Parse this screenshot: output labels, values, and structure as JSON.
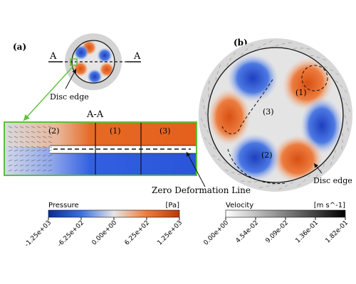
{
  "panel_a": {
    "label": "(a)",
    "section_marker": "A",
    "section_title": "A-A",
    "disc_edge_label": "Disc edge",
    "zero_line_label": "Zero Deformation Line",
    "regions": [
      "(2)",
      "(1)",
      "(3)"
    ]
  },
  "panel_b": {
    "label": "(b)",
    "disc_edge_label": "Disc edge",
    "regions": [
      "(1)",
      "(3)",
      "(2)"
    ]
  },
  "colorbar_pressure": {
    "title": "Pressure",
    "unit": "[Pa]",
    "ticks": [
      "-1.25e+03",
      "-6.25e+02",
      "0.00e+00",
      "6.25e+02",
      "1.25e+03"
    ],
    "colors": [
      "#0a2a9a",
      "#3b6fe0",
      "#e6e6e6",
      "#f07a3a",
      "#b83a0a"
    ]
  },
  "colorbar_velocity": {
    "title": "Velocity",
    "unit": "[m s^-1]",
    "ticks": [
      "0.00e+00",
      "4.54e-02",
      "9.09e-02",
      "1.36e-01",
      "1.82e-01"
    ],
    "colors": [
      "#ffffff",
      "#000000"
    ]
  },
  "colors": {
    "positive": "#e8621e",
    "negative": "#2f55d4",
    "neutral": "#e3e3e3",
    "frame_green": "#5fbf3a"
  }
}
